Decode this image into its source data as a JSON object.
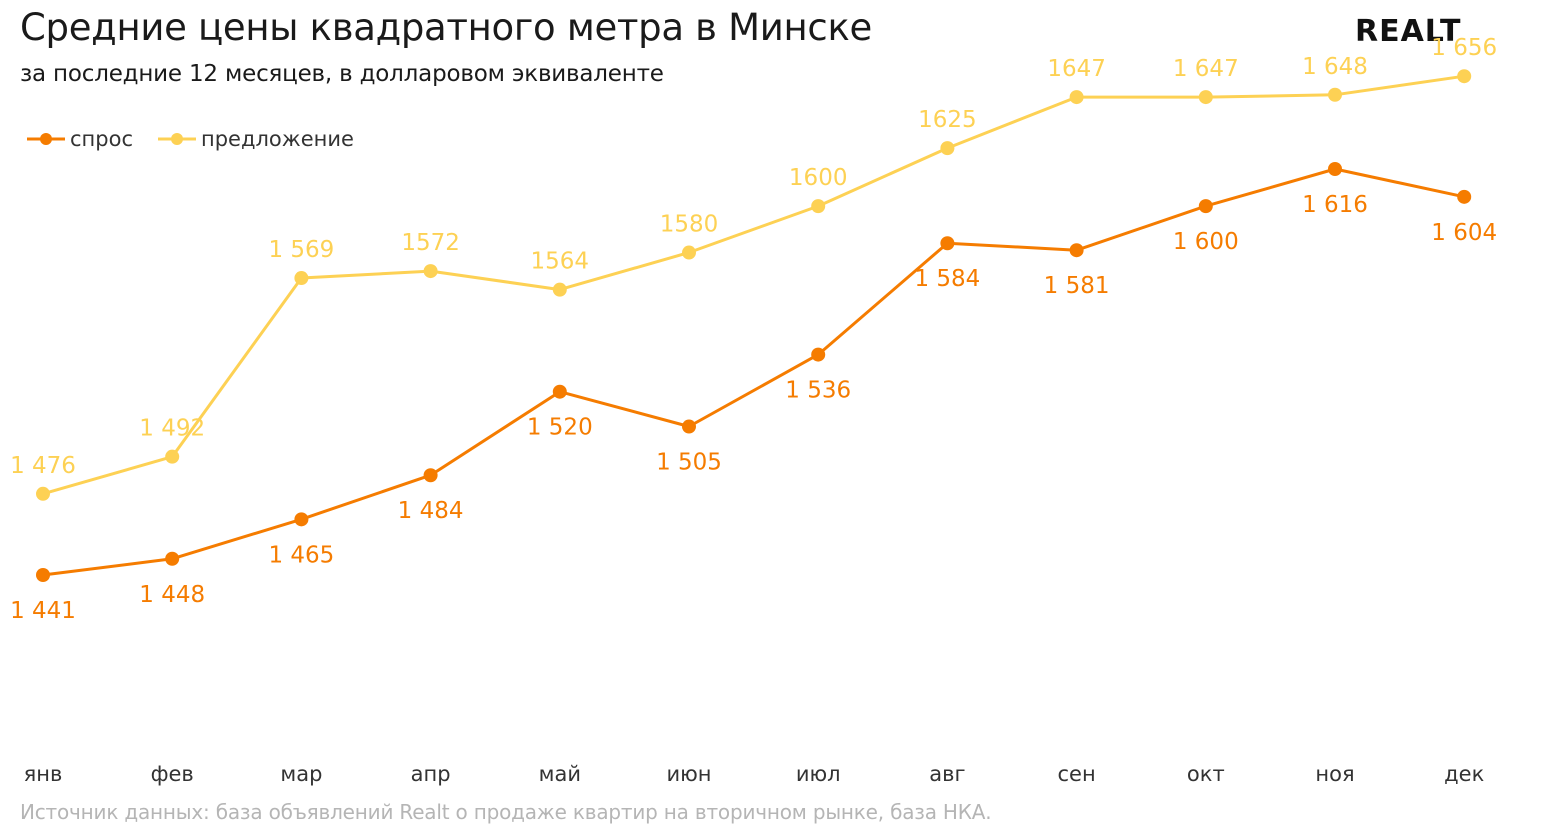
{
  "header": {
    "title": "Средние цены квадратного метра в Минске",
    "subtitle": "за последние 12 месяцев, в долларовом эквиваленте",
    "logo_text": "REALT"
  },
  "footer": {
    "source": "Источник данных: база объявлений Realt о продаже квартир на вторичном рынке, база НКА."
  },
  "colors": {
    "demand": "#f57c00",
    "supply": "#fdd154",
    "axis_label": "#333333",
    "source_text": "#b5b5b5"
  },
  "chart_data": {
    "type": "line",
    "title": "Средние цены квадратного метра в Минске",
    "subtitle": "за последние 12 месяцев, в долларовом эквиваленте",
    "categories": [
      "янв",
      "фев",
      "мар",
      "апр",
      "май",
      "июн",
      "июл",
      "авг",
      "сен",
      "окт",
      "ноя",
      "дек"
    ],
    "series": [
      {
        "name": "спрос",
        "color": "#f57c00",
        "values": [
          1441,
          1448,
          1465,
          1484,
          1520,
          1505,
          1536,
          1584,
          1581,
          1600,
          1616,
          1604
        ],
        "labels": [
          "1 441",
          "1 448",
          "1 465",
          "1 484",
          "1 520",
          "1 505",
          "1 536",
          "1 584",
          "1 581",
          "1 600",
          "1 616",
          "1 604"
        ],
        "label_position": "below"
      },
      {
        "name": "предложение",
        "color": "#fdd154",
        "values": [
          1476,
          1492,
          1569,
          1572,
          1564,
          1580,
          1600,
          1625,
          1647,
          1647,
          1648,
          1656
        ],
        "labels": [
          "1 476",
          "1 492",
          "1 569",
          "1572",
          "1564",
          "1580",
          "1600",
          "1625",
          "1647",
          "1 647",
          "1 648",
          "1 656"
        ],
        "label_position": "above"
      }
    ],
    "legend_position": "top-left",
    "grid": false,
    "y_axis_visible": false,
    "ylim": [
      1400,
      1670
    ]
  }
}
